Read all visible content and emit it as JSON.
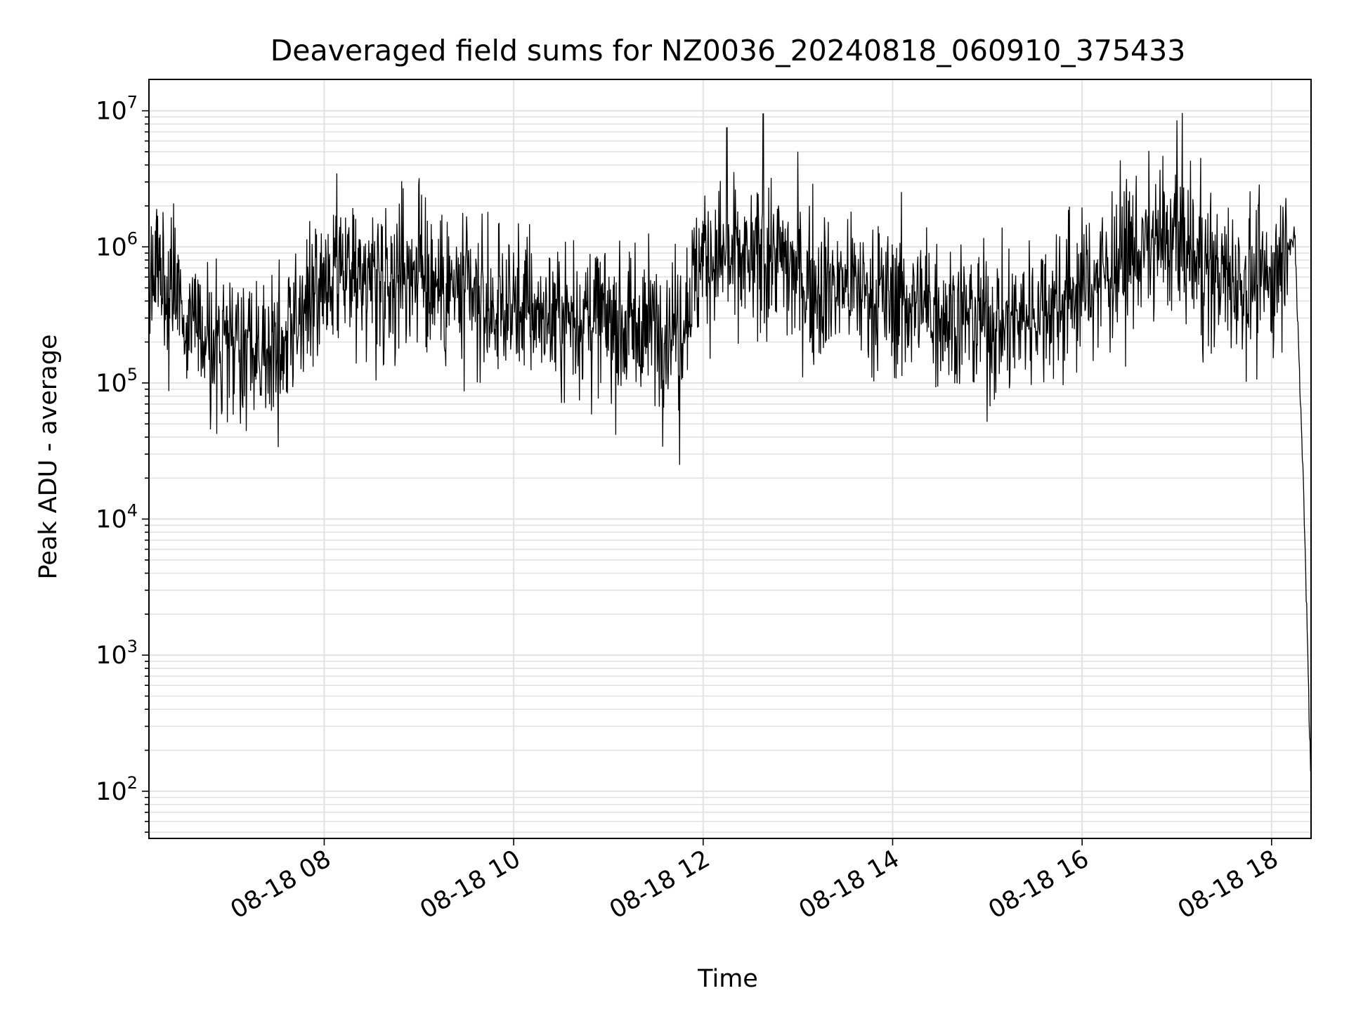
{
  "chart_data": {
    "type": "line",
    "title": "Deaveraged field sums for NZ0036_20240818_060910_375433",
    "xlabel": "Time",
    "ylabel": "Peak ADU - average",
    "y_scale": "log",
    "grid": true,
    "legend": "none",
    "x_range": [
      "08-18 06:09",
      "08-18 18:25"
    ],
    "ylim": [
      45,
      17000000
    ],
    "x_ticks": [
      "08-18 08",
      "08-18 10",
      "08-18 12",
      "08-18 14",
      "08-18 16",
      "08-18 18"
    ],
    "y_ticks": [
      {
        "base": "10",
        "exp": "2"
      },
      {
        "base": "10",
        "exp": "3"
      },
      {
        "base": "10",
        "exp": "4"
      },
      {
        "base": "10",
        "exp": "5"
      },
      {
        "base": "10",
        "exp": "6"
      },
      {
        "base": "10",
        "exp": "7"
      }
    ],
    "series": [
      {
        "color": "#000000",
        "x": [
          "08-18 06:09",
          "08-18 06:30",
          "08-18 06:45",
          "08-18 07:00",
          "08-18 07:15",
          "08-18 07:30",
          "08-18 07:45",
          "08-18 08:00",
          "08-18 08:15",
          "08-18 08:30",
          "08-18 08:45",
          "08-18 09:00",
          "08-18 09:15",
          "08-18 09:30",
          "08-18 09:45",
          "08-18 10:00",
          "08-18 10:15",
          "08-18 10:30",
          "08-18 10:45",
          "08-18 11:00",
          "08-18 11:15",
          "08-18 11:30",
          "08-18 11:45",
          "08-18 12:00",
          "08-18 12:15",
          "08-18 12:30",
          "08-18 12:45",
          "08-18 13:00",
          "08-18 13:15",
          "08-18 13:30",
          "08-18 13:45",
          "08-18 14:00",
          "08-18 14:15",
          "08-18 14:30",
          "08-18 14:45",
          "08-18 15:00",
          "08-18 15:15",
          "08-18 15:30",
          "08-18 15:45",
          "08-18 16:00",
          "08-18 16:15",
          "08-18 16:30",
          "08-18 16:45",
          "08-18 17:00",
          "08-18 17:15",
          "08-18 17:30",
          "08-18 17:45",
          "08-18 18:00",
          "08-18 18:10",
          "08-18 18:15",
          "08-18 18:18",
          "08-18 18:20",
          "08-18 18:22",
          "08-18 18:24",
          "08-18 18:25"
        ],
        "y": [
          700000,
          400000,
          200000,
          180000,
          170000,
          200000,
          300000,
          500000,
          550000,
          600000,
          650000,
          700000,
          500000,
          400000,
          350000,
          380000,
          330000,
          300000,
          320000,
          280000,
          250000,
          270000,
          260000,
          900000,
          800000,
          700000,
          900000,
          600000,
          500000,
          550000,
          450000,
          400000,
          380000,
          350000,
          300000,
          280000,
          270000,
          350000,
          400000,
          500000,
          650000,
          900000,
          1000000,
          1200000,
          700000,
          600000,
          550000,
          550000,
          1200000,
          1000000,
          90000,
          20000,
          3000,
          300,
          120
        ],
        "x_peaks": [
          "08-18 08:50",
          "08-18 09:00",
          "08-18 11:45",
          "08-18 12:15",
          "08-18 12:38",
          "08-18 13:00",
          "08-18 17:00",
          "08-18 17:15"
        ],
        "y_peaks": [
          2700000,
          3200000,
          25000,
          7500000,
          9500000,
          5000000,
          8500000,
          4500000
        ]
      }
    ]
  }
}
